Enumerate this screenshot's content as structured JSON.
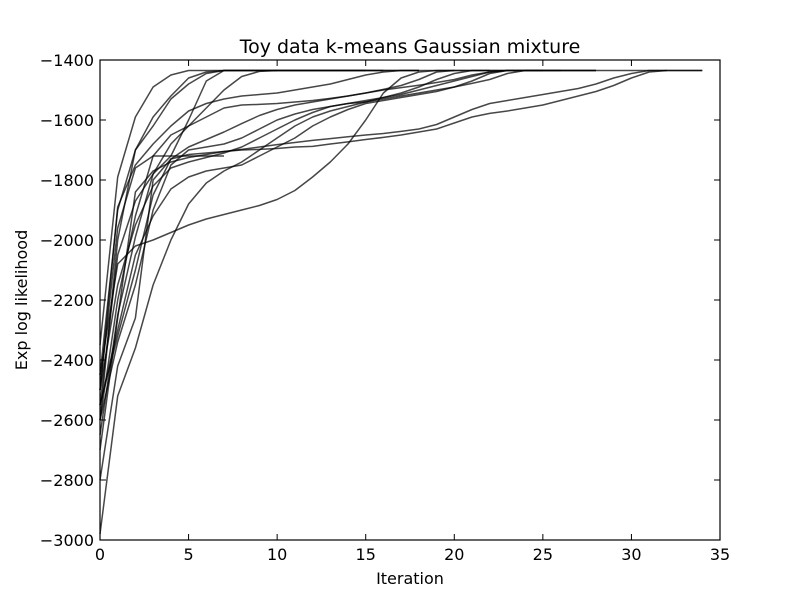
{
  "chart_data": {
    "type": "line",
    "title": "Toy data k-means Gaussian mixture",
    "xlabel": "Iteration",
    "ylabel": "Exp log likelihood",
    "xlim": [
      0,
      35
    ],
    "ylim": [
      -3000,
      -1400
    ],
    "xticks": [
      0,
      5,
      10,
      15,
      20,
      25,
      30,
      35
    ],
    "yticks": [
      -3000,
      -2800,
      -2600,
      -2400,
      -2200,
      -2000,
      -1800,
      -1600,
      -1400
    ],
    "grid": false,
    "legend": "none",
    "line_color": "#000000",
    "series": [
      {
        "x": [
          0,
          1,
          2,
          3,
          4,
          5,
          6,
          7,
          8,
          9,
          10,
          11,
          12,
          13,
          14,
          15,
          16,
          17,
          18,
          19,
          20,
          21,
          22,
          23,
          24,
          25,
          26,
          27,
          28
        ],
        "y": [
          -2500,
          -1890,
          -1750,
          -1680,
          -1620,
          -1570,
          -1545,
          -1530,
          -1520,
          -1515,
          -1510,
          -1500,
          -1490,
          -1480,
          -1465,
          -1450,
          -1440,
          -1435,
          -1435,
          -1435,
          -1435,
          -1435,
          -1435,
          -1435,
          -1435,
          -1435,
          -1435,
          -1435,
          -1435
        ]
      },
      {
        "x": [
          0,
          1,
          2,
          3,
          4,
          5,
          6,
          7,
          8,
          9,
          10,
          11,
          12,
          13,
          14,
          15,
          16
        ],
        "y": [
          -2350,
          -1790,
          -1590,
          -1490,
          -1450,
          -1435,
          -1435,
          -1435,
          -1435,
          -1435,
          -1435,
          -1435,
          -1435,
          -1435,
          -1435,
          -1435,
          -1435
        ]
      },
      {
        "x": [
          0,
          1,
          2,
          3,
          4,
          5,
          6,
          7,
          8,
          9,
          10,
          11,
          12,
          13,
          14,
          15,
          16,
          17,
          18
        ],
        "y": [
          -2550,
          -2050,
          -1870,
          -1780,
          -1720,
          -1600,
          -1470,
          -1435,
          -1435,
          -1435,
          -1435,
          -1435,
          -1435,
          -1435,
          -1435,
          -1435,
          -1435,
          -1435,
          -1435
        ]
      },
      {
        "x": [
          0,
          1,
          2,
          3,
          4,
          5,
          6,
          7,
          8,
          9,
          10,
          11,
          12,
          13,
          14,
          15,
          16,
          17,
          18,
          19,
          20,
          21,
          22,
          23,
          24,
          25,
          26,
          27,
          28,
          29,
          30,
          31,
          32,
          33,
          34
        ],
        "y": [
          -2450,
          -2080,
          -2020,
          -2000,
          -1975,
          -1950,
          -1930,
          -1915,
          -1900,
          -1885,
          -1865,
          -1835,
          -1790,
          -1740,
          -1680,
          -1600,
          -1510,
          -1460,
          -1440,
          -1435,
          -1435,
          -1435,
          -1435,
          -1435,
          -1435,
          -1435,
          -1435,
          -1435,
          -1435,
          -1435,
          -1435,
          -1435,
          -1435,
          -1435,
          -1435
        ]
      },
      {
        "x": [
          0,
          1,
          2,
          3,
          4,
          5,
          6,
          7,
          8,
          9,
          10,
          11,
          12,
          13,
          14,
          15,
          16,
          17,
          18,
          19,
          20,
          21,
          22,
          23,
          24,
          25,
          26,
          27,
          28,
          29,
          30,
          31,
          32
        ],
        "y": [
          -2700,
          -2260,
          -1840,
          -1770,
          -1740,
          -1725,
          -1715,
          -1705,
          -1698,
          -1690,
          -1682,
          -1675,
          -1668,
          -1662,
          -1656,
          -1650,
          -1645,
          -1638,
          -1630,
          -1615,
          -1590,
          -1565,
          -1545,
          -1535,
          -1525,
          -1515,
          -1505,
          -1495,
          -1480,
          -1460,
          -1445,
          -1435,
          -1435
        ]
      },
      {
        "x": [
          0,
          1,
          2,
          3,
          4,
          5,
          6,
          7,
          8,
          9,
          10,
          11,
          12,
          13,
          14,
          15,
          16,
          17,
          18,
          19,
          20,
          21,
          22,
          23,
          24,
          25,
          26,
          27,
          28,
          29,
          30,
          31,
          32,
          33,
          34
        ],
        "y": [
          -2800,
          -2420,
          -2260,
          -1800,
          -1730,
          -1715,
          -1710,
          -1705,
          -1700,
          -1698,
          -1695,
          -1690,
          -1688,
          -1680,
          -1673,
          -1665,
          -1658,
          -1650,
          -1640,
          -1630,
          -1610,
          -1590,
          -1578,
          -1570,
          -1560,
          -1550,
          -1535,
          -1520,
          -1505,
          -1485,
          -1460,
          -1440,
          -1435,
          -1435,
          -1435
        ]
      },
      {
        "x": [
          0,
          1,
          2,
          3,
          4,
          5,
          6,
          7,
          8,
          9,
          10,
          11,
          12,
          13,
          14,
          15,
          16,
          17,
          18,
          19,
          20,
          21,
          22,
          23,
          24,
          25,
          26
        ],
        "y": [
          -2600,
          -2200,
          -1920,
          -1720,
          -1650,
          -1620,
          -1590,
          -1560,
          -1550,
          -1548,
          -1545,
          -1540,
          -1535,
          -1528,
          -1520,
          -1510,
          -1500,
          -1492,
          -1484,
          -1475,
          -1465,
          -1450,
          -1440,
          -1435,
          -1435,
          -1435,
          -1435
        ]
      },
      {
        "x": [
          0,
          1,
          2,
          3,
          4,
          5,
          6,
          7,
          8,
          9,
          10,
          11,
          12,
          13,
          14,
          15,
          16,
          17,
          18,
          19,
          20,
          21,
          22,
          23,
          24,
          25
        ],
        "y": [
          -2500,
          -2150,
          -1950,
          -1820,
          -1760,
          -1740,
          -1725,
          -1710,
          -1690,
          -1660,
          -1630,
          -1600,
          -1575,
          -1555,
          -1545,
          -1540,
          -1530,
          -1520,
          -1510,
          -1500,
          -1490,
          -1478,
          -1465,
          -1445,
          -1435,
          -1435
        ]
      },
      {
        "x": [
          0,
          1,
          2,
          3,
          4,
          5,
          6,
          7,
          8,
          9,
          10,
          11,
          12,
          13,
          14,
          15,
          16,
          17,
          18,
          19,
          20,
          21,
          22,
          23
        ],
        "y": [
          -2550,
          -2300,
          -2050,
          -1920,
          -1830,
          -1790,
          -1770,
          -1760,
          -1750,
          -1720,
          -1690,
          -1660,
          -1620,
          -1590,
          -1565,
          -1545,
          -1535,
          -1525,
          -1515,
          -1505,
          -1490,
          -1470,
          -1445,
          -1435
        ]
      },
      {
        "x": [
          0,
          1,
          2,
          3,
          4,
          5,
          6,
          7,
          8,
          9,
          10,
          11,
          12,
          13,
          14,
          15,
          16,
          17,
          18,
          19,
          20,
          21,
          22
        ],
        "y": [
          -2980,
          -2520,
          -2360,
          -2150,
          -2000,
          -1880,
          -1810,
          -1770,
          -1740,
          -1700,
          -1660,
          -1620,
          -1590,
          -1570,
          -1555,
          -1540,
          -1525,
          -1510,
          -1490,
          -1465,
          -1445,
          -1435,
          -1435
        ]
      },
      {
        "x": [
          0,
          1,
          2,
          3,
          4,
          5,
          6,
          7,
          8,
          9,
          10,
          11,
          12,
          13,
          14,
          15,
          16,
          17,
          18,
          19,
          20,
          21,
          22,
          23,
          24,
          25,
          26,
          27,
          28
        ],
        "y": [
          -2600,
          -2340,
          -2150,
          -1900,
          -1750,
          -1700,
          -1690,
          -1680,
          -1660,
          -1630,
          -1600,
          -1580,
          -1565,
          -1555,
          -1545,
          -1535,
          -1525,
          -1515,
          -1500,
          -1485,
          -1470,
          -1455,
          -1440,
          -1435,
          -1435,
          -1435,
          -1435,
          -1435,
          -1435
        ]
      },
      {
        "x": [
          0,
          1,
          2,
          3,
          4,
          5,
          6,
          7,
          8,
          9,
          10,
          11,
          12,
          13,
          14,
          15
        ],
        "y": [
          -2450,
          -1900,
          -1700,
          -1620,
          -1530,
          -1480,
          -1445,
          -1435,
          -1435,
          -1435,
          -1435,
          -1435,
          -1435,
          -1435,
          -1435,
          -1435
        ]
      },
      {
        "x": [
          0,
          1,
          2,
          3,
          4,
          5,
          6,
          7
        ],
        "y": [
          -2500,
          -1960,
          -1760,
          -1720,
          -1720,
          -1720,
          -1720,
          -1720
        ]
      },
      {
        "x": [
          0,
          1,
          2,
          3,
          4,
          5,
          6,
          7,
          8,
          9,
          10
        ],
        "y": [
          -2650,
          -2250,
          -1990,
          -1780,
          -1680,
          -1620,
          -1560,
          -1500,
          -1455,
          -1438,
          -1435
        ]
      },
      {
        "x": [
          0,
          1,
          2,
          3,
          4,
          5,
          6,
          7,
          8,
          9,
          10,
          11,
          12,
          13,
          14,
          15,
          16,
          17,
          18,
          19,
          20
        ],
        "y": [
          -2550,
          -2320,
          -2100,
          -1850,
          -1730,
          -1690,
          -1665,
          -1640,
          -1612,
          -1585,
          -1565,
          -1550,
          -1540,
          -1530,
          -1520,
          -1510,
          -1498,
          -1485,
          -1465,
          -1440,
          -1435
        ]
      },
      {
        "x": [
          0,
          1,
          2,
          3,
          4,
          5,
          6,
          7,
          8,
          9,
          10,
          11,
          12,
          13,
          14,
          15,
          16,
          17,
          18
        ],
        "y": [
          -2600,
          -2000,
          -1700,
          -1590,
          -1520,
          -1460,
          -1440,
          -1435,
          -1435,
          -1435,
          -1435,
          -1435,
          -1435,
          -1435,
          -1435,
          -1435,
          -1435,
          -1435,
          -1435
        ]
      }
    ]
  }
}
